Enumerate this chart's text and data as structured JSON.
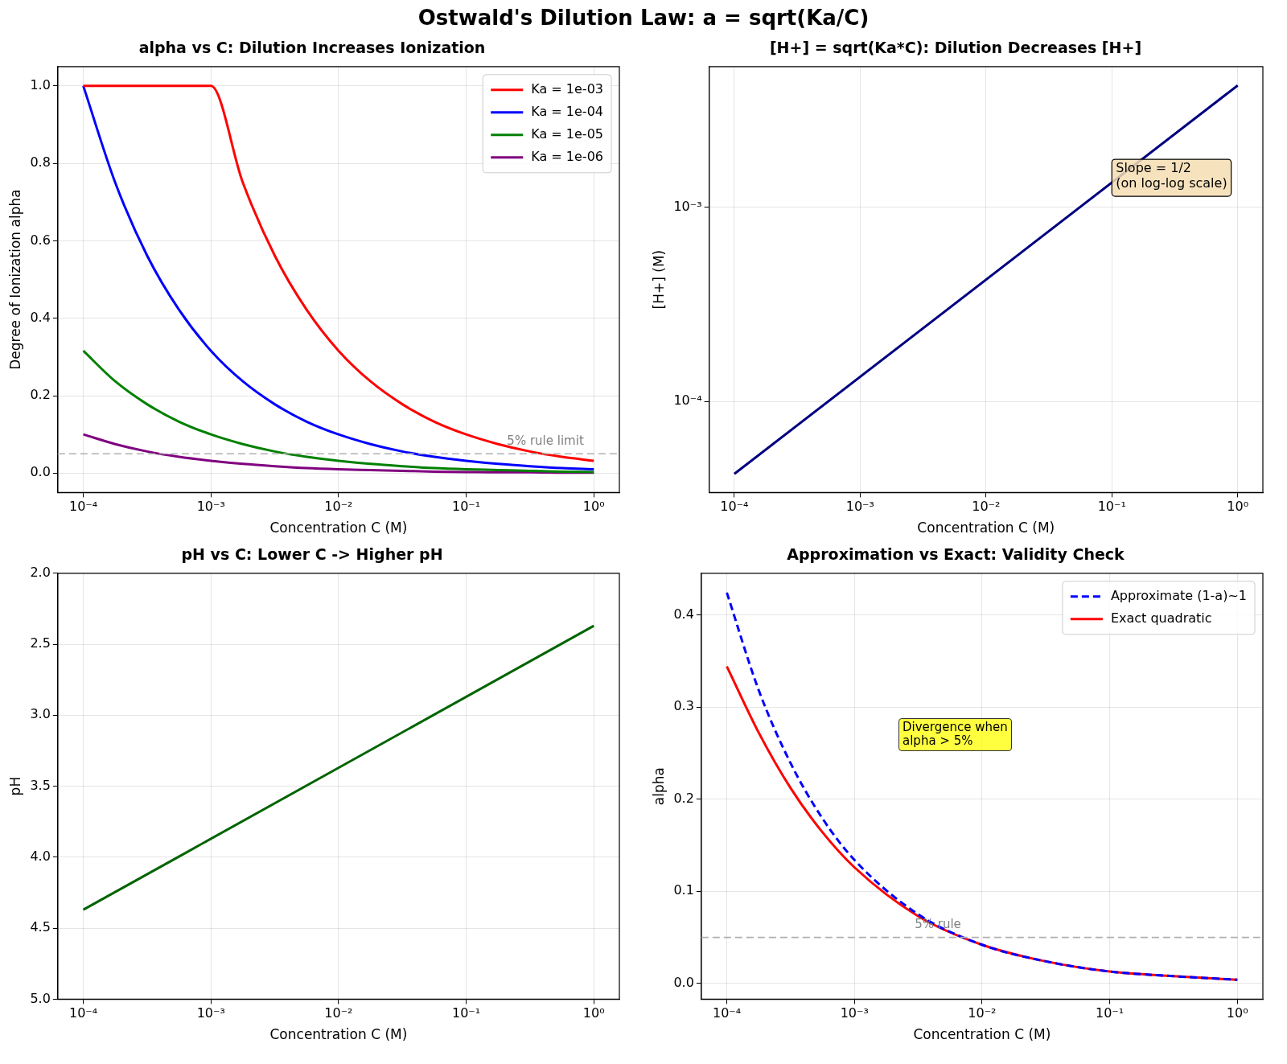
{
  "chart_data": [
    {
      "type": "line",
      "title": "alpha vs C: Dilution Increases Ionization",
      "xlabel": "Concentration C (M)",
      "ylabel": "Degree of Ionization alpha",
      "log": "x",
      "grid": true,
      "legend": "top right",
      "annotations": [
        "Ostwald's Dilution Law: a = sqrt(Ka/C)"
      ],
      "x": [
        0.0001,
        0.000178,
        0.000316,
        0.000562,
        0.001,
        0.00178,
        0.00316,
        0.00562,
        0.01,
        0.0178,
        0.0316,
        0.0562,
        0.1,
        0.178,
        0.316,
        0.562,
        1
      ],
      "series": [
        {
          "name": "Ka = 1e-03",
          "color": "#ff0000",
          "values": [
            1,
            1,
            1,
            1,
            1,
            0.75,
            0.562,
            0.422,
            0.316,
            0.237,
            0.178,
            0.133,
            0.1,
            0.075,
            0.056,
            0.042,
            0.032
          ]
        },
        {
          "name": "Ka = 1e-04",
          "color": "#0000ff",
          "values": [
            1,
            0.75,
            0.562,
            0.422,
            0.316,
            0.237,
            0.178,
            0.133,
            0.1,
            0.075,
            0.056,
            0.042,
            0.032,
            0.024,
            0.018,
            0.013,
            0.01
          ]
        },
        {
          "name": "Ka = 1e-05",
          "color": "#008000",
          "values": [
            0.316,
            0.237,
            0.178,
            0.133,
            0.1,
            0.075,
            0.056,
            0.042,
            0.032,
            0.024,
            0.018,
            0.013,
            0.01,
            0.008,
            0.006,
            0.004,
            0.003
          ]
        },
        {
          "name": "Ka = 1e-06",
          "color": "#800080",
          "values": [
            0.1,
            0.075,
            0.056,
            0.042,
            0.032,
            0.024,
            0.018,
            0.013,
            0.01,
            0.008,
            0.006,
            0.004,
            0.003,
            0.002,
            0.002,
            0.001,
            0.001
          ]
        }
      ],
      "xlim": [
        6.31e-05,
        1.585
      ],
      "xticks": [
        {
          "value": 0.0001,
          "label": "10⁻⁴"
        },
        {
          "value": 0.001,
          "label": "10⁻³"
        },
        {
          "value": 0.01,
          "label": "10⁻²"
        },
        {
          "value": 0.1,
          "label": "10⁻¹"
        },
        {
          "value": 1,
          "label": "10⁰"
        }
      ],
      "ylim": [
        -0.05,
        1.05
      ],
      "yticks": [
        {
          "value": 0,
          "label": "0.0"
        },
        {
          "value": 0.2,
          "label": "0.2"
        },
        {
          "value": 0.4,
          "label": "0.4"
        },
        {
          "value": 0.6,
          "label": "0.6"
        },
        {
          "value": 0.8,
          "label": "0.8"
        },
        {
          "value": 1,
          "label": "1.0"
        }
      ],
      "ref_lines": [
        {
          "axis": "y",
          "value": 0.05,
          "label": "5% rule limit",
          "color": "#b0b0b0",
          "line_style": "dashed"
        }
      ]
    },
    {
      "type": "line",
      "title": "[H+] = sqrt(Ka*C): Dilution Decreases [H+]",
      "xlabel": "Concentration C (M)",
      "ylabel": "[H+] (M)",
      "log": "xy",
      "grid": true,
      "annotations": [
        {
          "text": "Slope = 1/2\n(on log-log scale)",
          "x": 0.1,
          "y": 0.00134
        }
      ],
      "x": [
        0.0001,
        1
      ],
      "series": [
        {
          "color": "#000080",
          "values": [
            4.24e-05,
            0.00424
          ]
        }
      ],
      "xlim": [
        6.31e-05,
        1.585
      ],
      "xticks": [
        {
          "value": 0.0001,
          "label": "10⁻⁴"
        },
        {
          "value": 0.001,
          "label": "10⁻³"
        },
        {
          "value": 0.01,
          "label": "10⁻²"
        },
        {
          "value": 0.1,
          "label": "10⁻¹"
        },
        {
          "value": 1,
          "label": "10⁰"
        }
      ],
      "ylim": [
        3.4e-05,
        0.0053
      ],
      "yticks": [
        {
          "value": 0.0001,
          "label": "10⁻⁴"
        },
        {
          "value": 0.001,
          "label": "10⁻³"
        }
      ]
    },
    {
      "type": "line",
      "title": "pH vs C: Lower C -> Higher pH",
      "xlabel": "Concentration C (M)",
      "ylabel": "pH",
      "log": "x",
      "grid": true,
      "x": [
        0.0001,
        1
      ],
      "series": [
        {
          "color": "#006400",
          "values": [
            4.37,
            2.37
          ]
        }
      ],
      "xlim": [
        6.31e-05,
        1.585
      ],
      "xticks": [
        {
          "value": 0.0001,
          "label": "10⁻⁴"
        },
        {
          "value": 0.001,
          "label": "10⁻³"
        },
        {
          "value": 0.01,
          "label": "10⁻²"
        },
        {
          "value": 0.1,
          "label": "10⁻¹"
        },
        {
          "value": 1,
          "label": "10⁰"
        }
      ],
      "ylim": [
        5,
        2
      ],
      "yticks": [
        {
          "value": 2,
          "label": "2.0"
        },
        {
          "value": 2.5,
          "label": "2.5"
        },
        {
          "value": 3,
          "label": "3.0"
        },
        {
          "value": 3.5,
          "label": "3.5"
        },
        {
          "value": 4,
          "label": "4.0"
        },
        {
          "value": 4.5,
          "label": "4.5"
        },
        {
          "value": 5,
          "label": "5.0"
        }
      ]
    },
    {
      "type": "line",
      "title": "Approximation vs Exact: Validity Check",
      "xlabel": "Concentration C (M)",
      "ylabel": "alpha",
      "log": "x",
      "grid": true,
      "legend": "top right",
      "annotations": [
        "Divergence when\nalpha > 5%"
      ],
      "x": [
        0.0001,
        0.000178,
        0.000316,
        0.000562,
        0.001,
        0.00316,
        0.01,
        0.0316,
        0.1,
        0.316,
        1
      ],
      "series": [
        {
          "name": "Approximate (1-a)~1",
          "color": "#0000ff",
          "line_style": "dashed",
          "values": [
            0.424,
            0.318,
            0.239,
            0.179,
            0.134,
            0.075,
            0.042,
            0.024,
            0.013,
            0.008,
            0.004
          ]
        },
        {
          "name": "Exact quadratic",
          "color": "#ff0000",
          "values": [
            0.344,
            0.272,
            0.212,
            0.164,
            0.126,
            0.073,
            0.042,
            0.024,
            0.013,
            0.008,
            0.004
          ]
        }
      ],
      "xlim": [
        6.31e-05,
        1.585
      ],
      "xticks": [
        {
          "value": 0.0001,
          "label": "10⁻⁴"
        },
        {
          "value": 0.001,
          "label": "10⁻³"
        },
        {
          "value": 0.01,
          "label": "10⁻²"
        },
        {
          "value": 0.1,
          "label": "10⁻¹"
        },
        {
          "value": 1,
          "label": "10⁰"
        }
      ],
      "ylim": [
        -0.017,
        0.445
      ],
      "yticks": [
        {
          "value": 0,
          "label": "0.0"
        },
        {
          "value": 0.1,
          "label": "0.1"
        },
        {
          "value": 0.2,
          "label": "0.2"
        },
        {
          "value": 0.3,
          "label": "0.3"
        },
        {
          "value": 0.4,
          "label": "0.4"
        }
      ],
      "ref_lines": [
        {
          "axis": "y",
          "value": 0.05,
          "label": "5% rule",
          "color": "#b0b0b0",
          "line_style": "dashed"
        }
      ]
    }
  ]
}
